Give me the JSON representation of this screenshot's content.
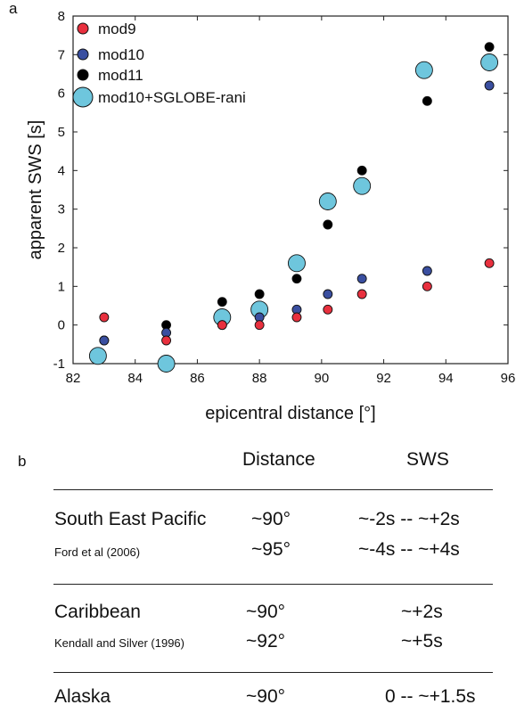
{
  "panel_a_label": "a",
  "panel_b_label": "b",
  "colors": {
    "mod9": "#e8303e",
    "mod10": "#3a4fa0",
    "mod11": "#000000",
    "sglobe": "#6ec6dd"
  },
  "chart_data": {
    "type": "scatter",
    "xlabel": "epicentral distance [°]",
    "ylabel": "apparent  SWS [s]",
    "xlim": [
      82,
      96
    ],
    "ylim": [
      -1,
      8
    ],
    "xticks": [
      "82",
      "84",
      "86",
      "88",
      "90",
      "92",
      "94",
      "96"
    ],
    "yticks": [
      "-1",
      "0",
      "1",
      "2",
      "3",
      "4",
      "5",
      "6",
      "7",
      "8"
    ],
    "grid": false,
    "legend_position": "top-left",
    "series": [
      {
        "name": "mod9",
        "x": [
          83.0,
          85.0,
          86.8,
          88.0,
          89.2,
          90.2,
          91.3,
          93.4,
          95.4
        ],
        "y": [
          0.2,
          -0.4,
          0.0,
          0.0,
          0.2,
          0.4,
          0.8,
          1.0,
          1.6
        ]
      },
      {
        "name": "mod10",
        "x": [
          83.0,
          85.0,
          86.8,
          88.0,
          89.2,
          90.2,
          91.3,
          93.4,
          95.4
        ],
        "y": [
          -0.4,
          -0.2,
          0.0,
          0.2,
          0.4,
          0.8,
          1.2,
          1.4,
          6.2
        ]
      },
      {
        "name": "mod11",
        "x": [
          83.0,
          85.0,
          86.8,
          88.0,
          89.2,
          90.2,
          91.3,
          93.4,
          95.4
        ],
        "y": [
          -0.4,
          0.0,
          0.6,
          0.8,
          1.2,
          2.6,
          4.0,
          5.8,
          7.2
        ]
      },
      {
        "name": "mod10+SGLOBE-rani",
        "x": [
          82.8,
          85.0,
          86.8,
          88.0,
          89.2,
          90.2,
          91.3,
          93.3,
          95.4
        ],
        "y": [
          -0.8,
          -1.0,
          0.2,
          0.4,
          1.6,
          3.2,
          3.6,
          6.6,
          6.8
        ]
      }
    ]
  },
  "table": {
    "headers": {
      "distance": "Distance",
      "sws": "SWS"
    },
    "groups": [
      {
        "region": "South East Pacific",
        "reference": "Ford et al (2006)",
        "rows": [
          {
            "distance": "~90°",
            "sws": "~-2s -- ~+2s"
          },
          {
            "distance": "~95°",
            "sws": "~-4s -- ~+4s"
          }
        ]
      },
      {
        "region": "Caribbean",
        "reference": "Kendall and Silver (1996)",
        "rows": [
          {
            "distance": "~90°",
            "sws": "~+2s"
          },
          {
            "distance": "~92°",
            "sws": "~+5s"
          }
        ]
      },
      {
        "region": "Alaska",
        "reference": "",
        "rows": [
          {
            "distance": "~90°",
            "sws": "0 -- ~+1.5s"
          }
        ]
      }
    ]
  }
}
